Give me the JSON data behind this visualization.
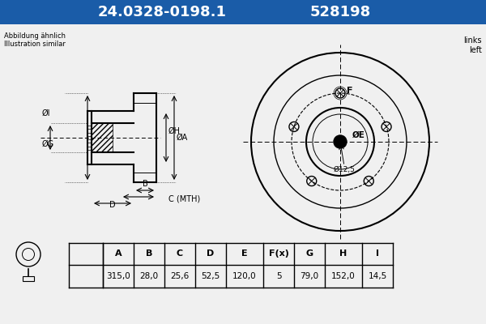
{
  "title_part1": "24.0328-0198.1",
  "title_part2": "528198",
  "title_bg": "#1a5ca8",
  "title_fg": "#ffffff",
  "subtitle_left": "Abbildung ähnlich\nIllustration similar",
  "subtitle_right": "links\nleft",
  "table_headers": [
    "A",
    "B",
    "C",
    "D",
    "E",
    "F(x)",
    "G",
    "H",
    "I"
  ],
  "table_values": [
    "315,0",
    "28,0",
    "25,6",
    "52,5",
    "120,0",
    "5",
    "79,0",
    "152,0",
    "14,5"
  ],
  "bg_color": "#f0f0f0",
  "line_color": "#000000",
  "dim_label_A": "ØA",
  "dim_label_H": "ØH",
  "dim_label_G": "ØG",
  "dim_label_I": "ØI",
  "dim_label_B": "B",
  "dim_label_C": "C (MTH)",
  "dim_label_D": "D",
  "dim_label_E": "ØE",
  "dim_label_F": "F",
  "dim_12": "Ø12,5"
}
